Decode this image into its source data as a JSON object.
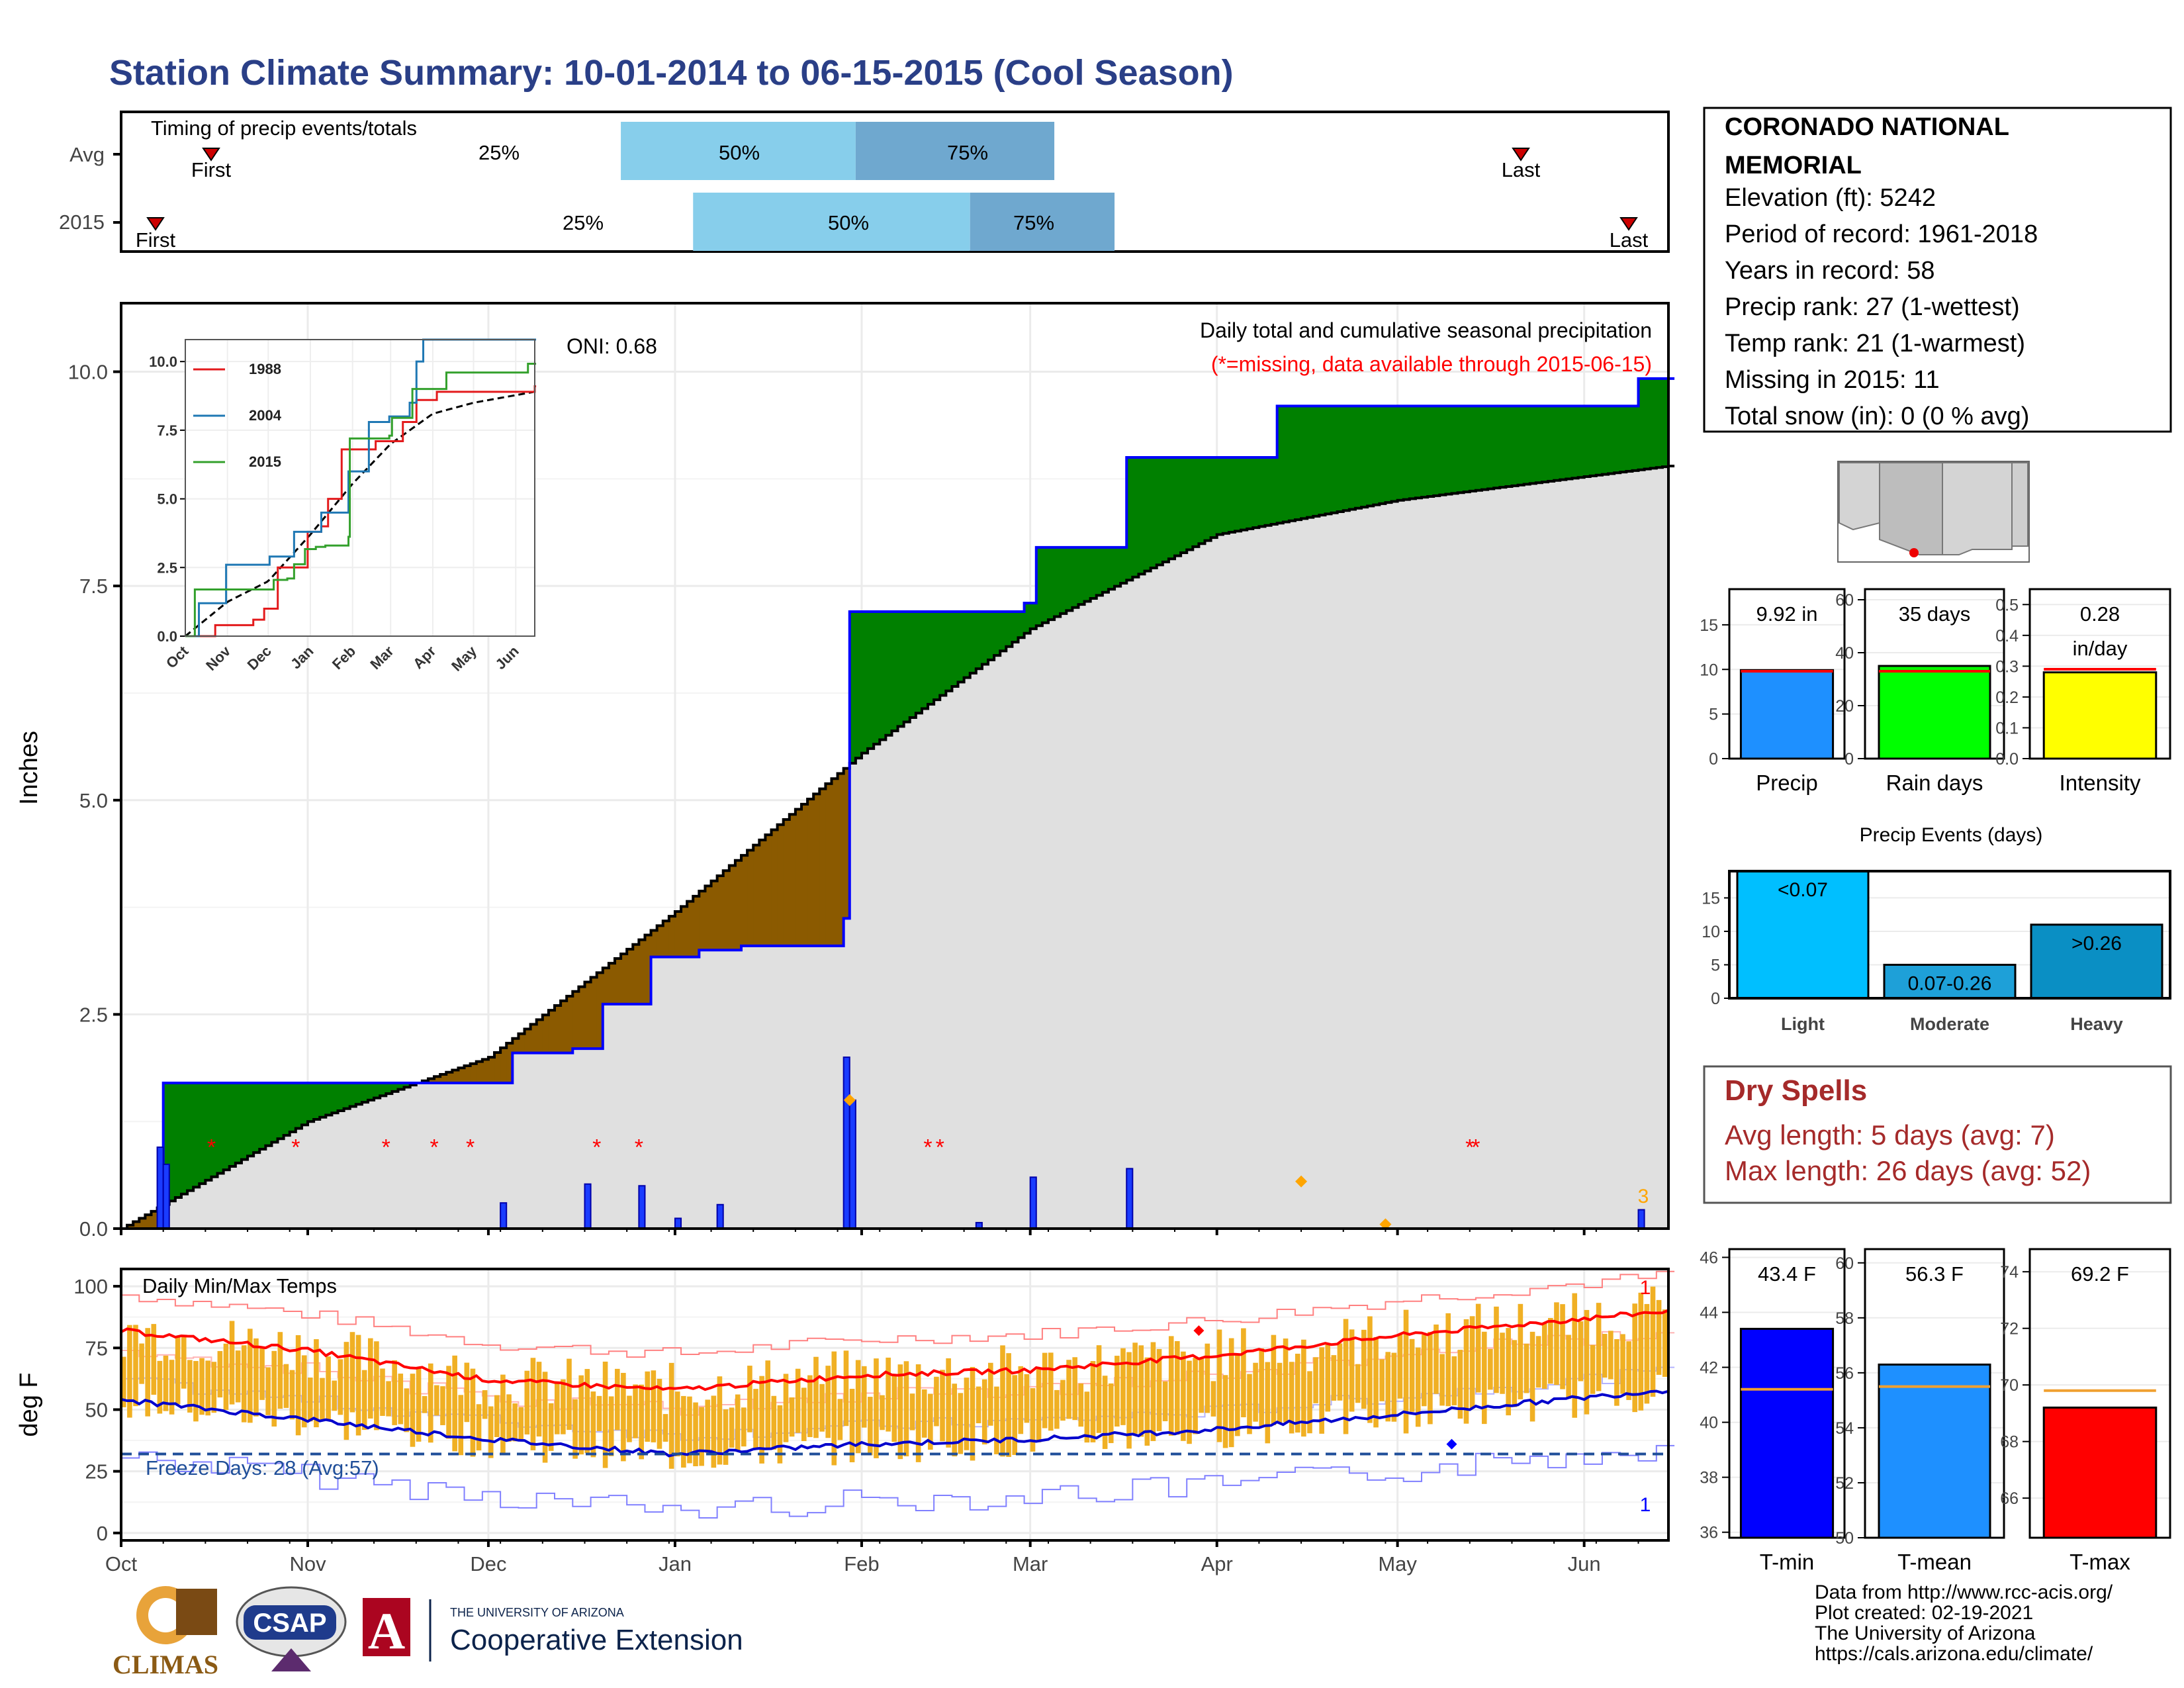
{
  "title": "Station Climate Summary: 10-01-2014 to 06-15-2015 (Cool Season)",
  "colors": {
    "title": "#2a3f87",
    "above": "#008000",
    "below": "#8b5a00",
    "cum": "#e0e0e0",
    "bars": "#1a3cff",
    "dryspell": "#a52a2a"
  },
  "timing": {
    "label": "Timing of precip events/totals",
    "rows": [
      {
        "label": "Avg",
        "first": "First",
        "last": "Last",
        "p25": "25%",
        "p50": "50%",
        "p75": "75%"
      },
      {
        "label": "2015",
        "first": "First",
        "last": "Last",
        "p25": "25%",
        "p50": "50%",
        "p75": "75%"
      }
    ]
  },
  "station": {
    "name": "CORONADO NATIONAL MEMORIAL",
    "elevation": "Elevation (ft): 5242",
    "period": "Period of record: 1961-2018",
    "years": "Years in record: 58",
    "precip_rank": "Precip rank: 27 (1-wettest)",
    "temp_rank": "Temp rank: 21 (1-warmest)",
    "missing": "Missing in 2015: 11",
    "snow": "Total snow (in): 0 (0 % avg)"
  },
  "main_chart": {
    "ylabel": "Inches",
    "title": "Daily total and cumulative seasonal precipitation",
    "missing_note": "(*=missing, data available through 2015-06-15)",
    "oni": "ONI: 0.68",
    "count_label": "3",
    "months": [
      "Oct",
      "Nov",
      "Dec",
      "Jan",
      "Feb",
      "Mar",
      "Apr",
      "May",
      "Jun"
    ],
    "yticks": [
      "0.0",
      "2.5",
      "5.0",
      "7.5",
      "10.0"
    ]
  },
  "inset": {
    "legend": [
      "1988",
      "2004",
      "2015"
    ],
    "yticks": [
      "0.0",
      "2.5",
      "5.0",
      "7.5",
      "10.0"
    ],
    "months": [
      "Oct",
      "Nov",
      "Dec",
      "Jan",
      "Feb",
      "Mar",
      "Apr",
      "May",
      "Jun"
    ]
  },
  "bars_small": [
    {
      "value_label": "9.92 in",
      "label": "Precip",
      "yticks": [
        "0",
        "5",
        "10",
        "15"
      ]
    },
    {
      "value_label": "35 days",
      "label": "Rain days",
      "yticks": [
        "0",
        "20",
        "40",
        "60"
      ]
    },
    {
      "value_label": "0.28",
      "value_label2": "in/day",
      "label": "Intensity",
      "yticks": [
        "0.0",
        "0.1",
        "0.2",
        "0.3",
        "0.4",
        "0.5"
      ]
    }
  ],
  "events": {
    "title": "Precip Events (days)",
    "cats": [
      "Light",
      "Moderate",
      "Heavy"
    ],
    "bar_labels": [
      "<0.07",
      "0.07-0.26",
      ">0.26"
    ],
    "yticks": [
      "0",
      "5",
      "10",
      "15"
    ]
  },
  "dryspells": {
    "title": "Dry Spells",
    "avg": "Avg length: 5 days (avg: 7)",
    "max": "Max length: 26 days (avg: 52)"
  },
  "temp_chart": {
    "label": "Daily Min/Max Temps",
    "ylabel": "deg F",
    "freeze": "Freeze Days: 28 (Avg:57)",
    "yticks": [
      "0",
      "25",
      "50",
      "75",
      "100"
    ],
    "months": [
      "Oct",
      "Nov",
      "Dec",
      "Jan",
      "Feb",
      "Mar",
      "Apr",
      "May",
      "Jun"
    ],
    "rec_hi_count": "1",
    "rec_lo_count": "1"
  },
  "temp_bars": [
    {
      "value_label": "43.4 F",
      "label": "T-min",
      "yticks": [
        "36",
        "38",
        "40",
        "42",
        "44",
        "46"
      ]
    },
    {
      "value_label": "56.3 F",
      "label": "T-mean",
      "yticks": [
        "50",
        "52",
        "54",
        "56",
        "58",
        "60"
      ]
    },
    {
      "value_label": "69.2 F",
      "label": "T-max",
      "yticks": [
        "66",
        "68",
        "70",
        "72",
        "74"
      ]
    }
  ],
  "footer": {
    "lines": [
      "Data from http://www.rcc-acis.org/",
      "Plot created: 02-19-2021",
      "The University of Arizona",
      "https://cals.arizona.edu/climate/"
    ],
    "logo_climas": "CLIMAS",
    "logo_csap": "CSAP",
    "logo_ua_small": "THE UNIVERSITY OF ARIZONA",
    "logo_ua_big": "Cooperative Extension"
  },
  "chart_data": [
    {
      "type": "area",
      "title": "Daily total and cumulative seasonal precipitation",
      "ylabel": "Inches",
      "ylim": [
        0,
        10.8
      ],
      "x_range": [
        "2014-10-01",
        "2015-06-15"
      ],
      "series": [
        {
          "name": "2015",
          "x": [
            "2014-10-01",
            "2014-10-08",
            "2014-11-15",
            "2014-12-05",
            "2014-12-15",
            "2014-12-20",
            "2014-12-28",
            "2015-01-05",
            "2015-01-12",
            "2015-01-29",
            "2015-01-30",
            "2015-02-28",
            "2015-03-02",
            "2015-03-17",
            "2015-04-11",
            "2015-06-10",
            "2015-06-15"
          ],
          "values": [
            0.0,
            1.7,
            1.7,
            2.05,
            2.1,
            2.62,
            3.17,
            3.25,
            3.3,
            3.62,
            7.2,
            7.3,
            7.95,
            9.0,
            9.6,
            9.92,
            9.92
          ]
        },
        {
          "name": "Avg",
          "x": [
            "2014-10-01",
            "2014-11-01",
            "2014-12-01",
            "2015-01-01",
            "2015-02-01",
            "2015-03-01",
            "2015-04-01",
            "2015-05-01",
            "2015-06-15"
          ],
          "values": [
            0.0,
            1.25,
            2.0,
            3.7,
            5.55,
            7.0,
            8.1,
            8.5,
            8.9
          ]
        }
      ],
      "daily_bars": {
        "x": [
          "2014-10-07",
          "2014-10-08",
          "2014-12-03",
          "2014-12-17",
          "2014-12-26",
          "2015-01-01",
          "2015-01-08",
          "2015-01-29",
          "2015-01-30",
          "2015-02-20",
          "2015-03-01",
          "2015-03-17",
          "2015-06-10"
        ],
        "values": [
          0.95,
          0.75,
          0.3,
          0.52,
          0.5,
          0.12,
          0.28,
          2.0,
          1.5,
          0.07,
          0.6,
          0.7,
          0.22
        ]
      }
    },
    {
      "type": "bar",
      "categories": [
        "Precip"
      ],
      "values": [
        9.92
      ],
      "avg": 9.8,
      "ylim": [
        0,
        19
      ]
    },
    {
      "type": "bar",
      "categories": [
        "Rain days"
      ],
      "values": [
        35
      ],
      "avg": 33,
      "ylim": [
        0,
        64
      ]
    },
    {
      "type": "bar",
      "categories": [
        "Intensity"
      ],
      "values": [
        0.28
      ],
      "avg": 0.29,
      "ylim": [
        0,
        0.55
      ]
    },
    {
      "type": "bar",
      "title": "Precip Events (days)",
      "categories": [
        "Light",
        "Moderate",
        "Heavy"
      ],
      "values": [
        19,
        5,
        11
      ],
      "ylim": [
        0,
        19
      ]
    },
    {
      "type": "bar",
      "categories": [
        "T-min"
      ],
      "values": [
        43.4
      ],
      "avg": 41.2,
      "ylim": [
        35.8,
        46.3
      ]
    },
    {
      "type": "bar",
      "categories": [
        "T-mean"
      ],
      "values": [
        56.3
      ],
      "avg": 55.5,
      "ylim": [
        50,
        60.5
      ]
    },
    {
      "type": "bar",
      "categories": [
        "T-max"
      ],
      "values": [
        69.2
      ],
      "avg": 69.8,
      "ylim": [
        64.6,
        74.8
      ]
    },
    {
      "type": "line",
      "title": "Daily Min/Max Temps",
      "ylabel": "deg F",
      "ylim": [
        -3,
        107
      ],
      "freeze_line": 32,
      "series": [
        {
          "name": "Avg max",
          "x": [
            "2014-10-01",
            "2014-11-01",
            "2014-12-01",
            "2015-01-01",
            "2015-02-01",
            "2015-03-01",
            "2015-04-01",
            "2015-05-01",
            "2015-06-15"
          ],
          "values": [
            82,
            74,
            62,
            58,
            64,
            66,
            72,
            80,
            90
          ]
        },
        {
          "name": "Avg min",
          "x": [
            "2014-10-01",
            "2014-11-01",
            "2014-12-01",
            "2015-01-01",
            "2015-02-01",
            "2015-03-01",
            "2015-04-01",
            "2015-05-01",
            "2015-06-15"
          ],
          "values": [
            54,
            46,
            38,
            32,
            36,
            38,
            42,
            48,
            58
          ]
        }
      ]
    }
  ]
}
